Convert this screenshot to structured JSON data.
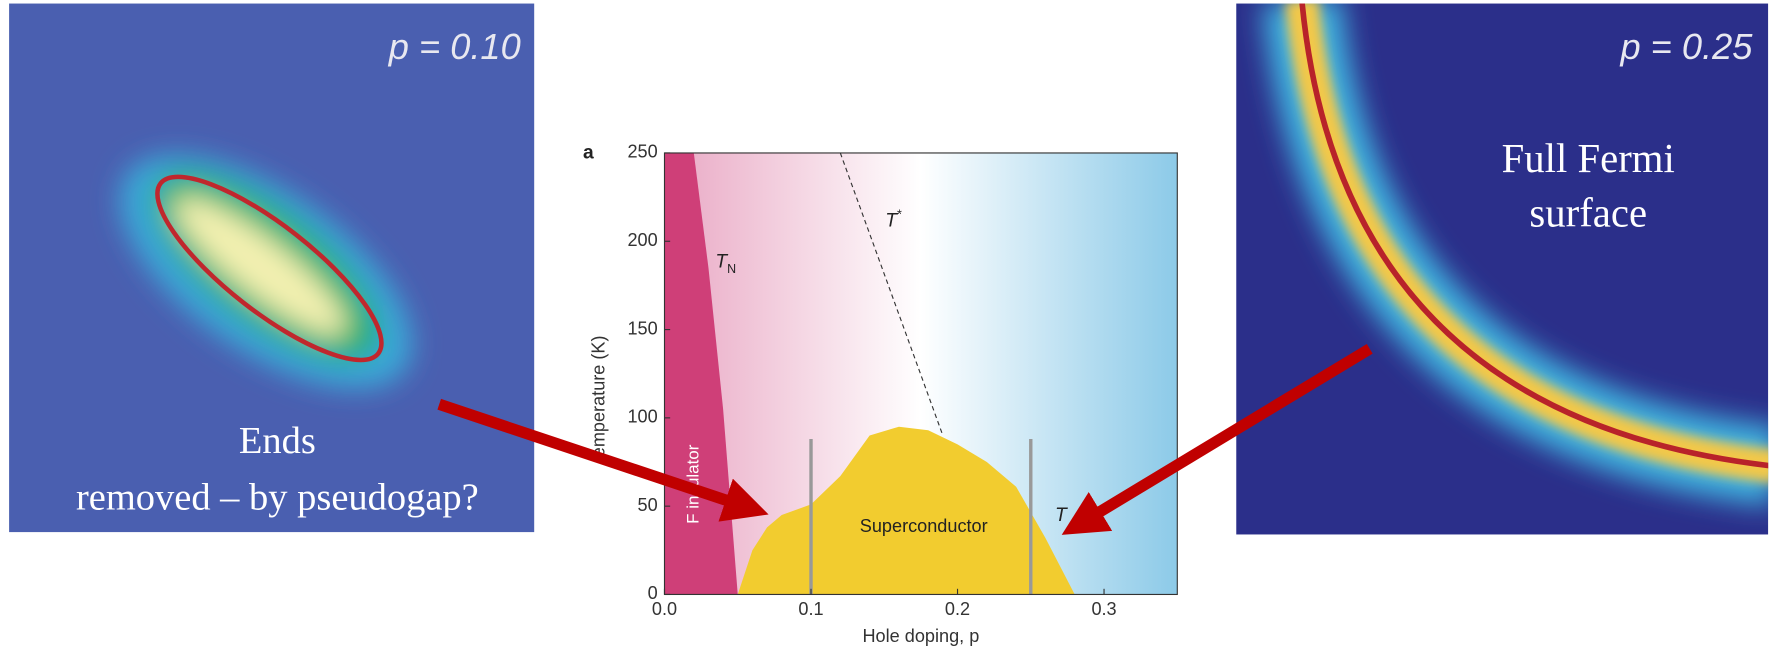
{
  "chart_data": {
    "type": "phase",
    "panel_label": "a",
    "x_label": "Hole doping, p",
    "y_label": "emperature (K)",
    "xlim": [
      0,
      0.35
    ],
    "ylim": [
      0,
      250
    ],
    "xticks": [
      {
        "value": 0,
        "label": "0.0"
      },
      0.1,
      0.2,
      0.3
    ],
    "yticks": [
      0,
      50,
      100,
      150,
      200,
      250
    ],
    "af_region": {
      "label": "F insulator",
      "color": "#cf3f78"
    },
    "neel_line": {
      "x": [
        0.02,
        0.03,
        0.04,
        0.05
      ],
      "y": [
        250,
        185,
        105,
        0
      ]
    },
    "neel_label": {
      "base": "T",
      "sub": "N"
    },
    "pseudogap_line": {
      "x": [
        0.12,
        0.19
      ],
      "y": [
        250,
        90
      ]
    },
    "pseudogap_label": {
      "base": "T",
      "sup": "*"
    },
    "dome": {
      "label": "Superconductor",
      "color": "#f2cc2f",
      "x": [
        0.05,
        0.06,
        0.07,
        0.08,
        0.1,
        0.12,
        0.14,
        0.16,
        0.18,
        0.2,
        0.22,
        0.24,
        0.26,
        0.28
      ],
      "y": [
        0,
        25,
        38,
        45,
        51,
        67,
        90,
        95,
        93,
        85,
        75,
        61,
        32,
        0
      ]
    },
    "markers": {
      "x": [
        0.1,
        0.25
      ],
      "top": 88,
      "color": "#999999"
    },
    "right_label": "T"
  },
  "left_panel": {
    "label": "p = 0.10",
    "caption": [
      "Ends",
      "removed – by pseudogap?"
    ]
  },
  "right_panel": {
    "label": "p = 0.25",
    "caption": [
      "Full Fermi",
      "surface"
    ]
  }
}
